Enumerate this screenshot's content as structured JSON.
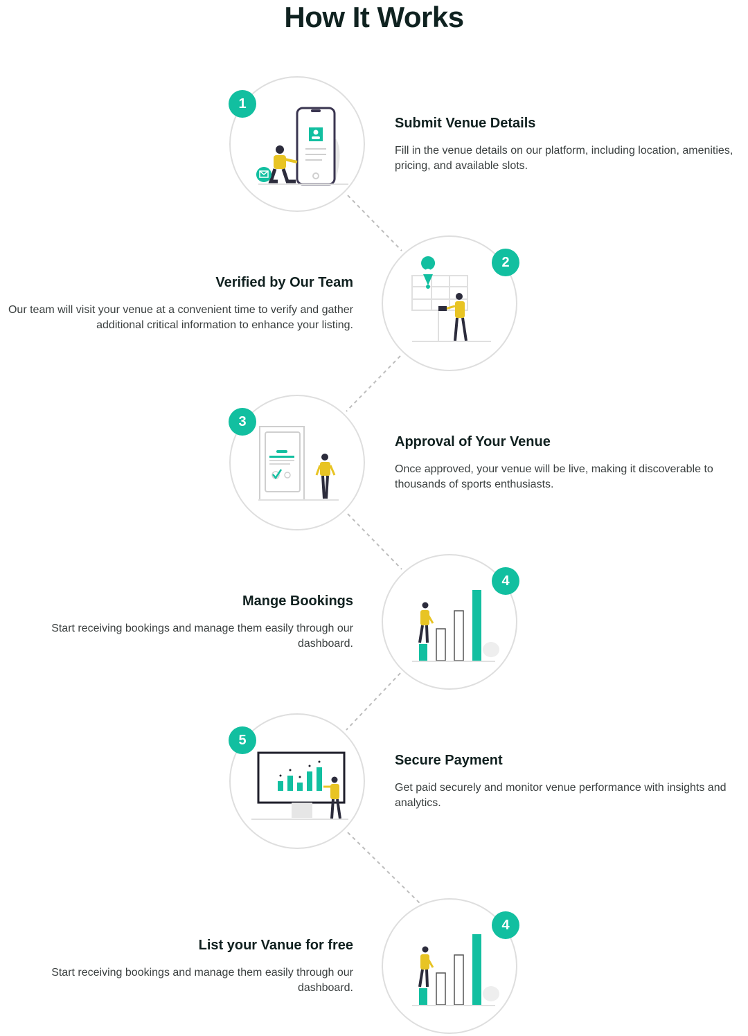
{
  "title": "How It Works",
  "accent_color": "#12bfa0",
  "figure_color": "#e8c424",
  "steps": [
    {
      "number": "1",
      "title": "Submit Venue Details",
      "description": "Fill in the venue details on our platform, including location, amenities, pricing, and available slots.",
      "illustration": "phone-profile-illustration"
    },
    {
      "number": "2",
      "title": "Verified by Our Team",
      "description": "Our team will visit your venue at a convenient time to verify and gather additional critical information to enhance your listing.",
      "illustration": "map-pin-illustration"
    },
    {
      "number": "3",
      "title": "Approval of Your Venue",
      "description": "Once approved, your venue will be live, making it discoverable to thousands of sports enthusiasts.",
      "illustration": "approval-checklist-illustration"
    },
    {
      "number": "4",
      "title": "Mange Bookings",
      "description": "Start receiving bookings and manage them easily through our dashboard.",
      "illustration": "growth-bars-illustration"
    },
    {
      "number": "5",
      "title": "Secure Payment",
      "description": "Get paid securely and monitor venue performance with insights and analytics.",
      "illustration": "analytics-monitor-illustration"
    },
    {
      "number": "4",
      "title": "List your Vanue for free",
      "description": "Start receiving bookings and manage them easily through our dashboard.",
      "illustration": "growth-bars-illustration"
    }
  ]
}
